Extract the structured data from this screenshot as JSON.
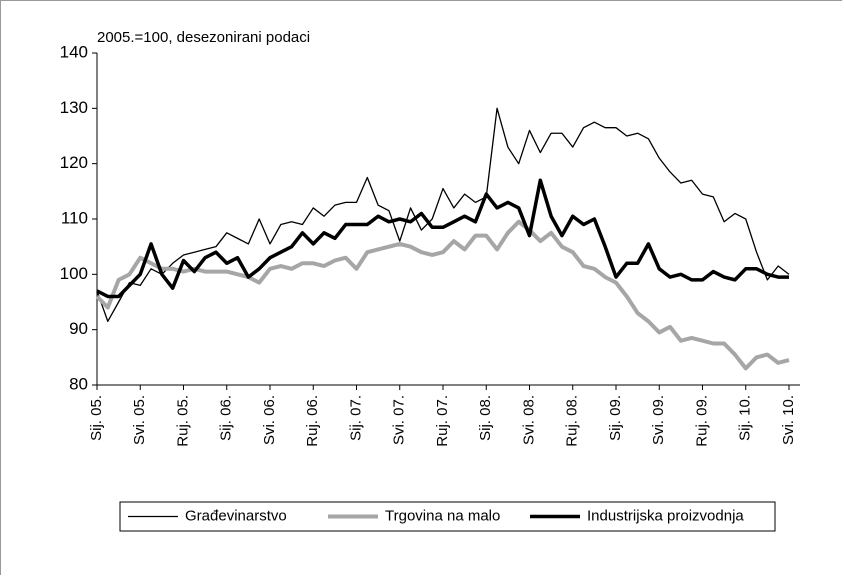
{
  "chart_data": {
    "type": "line",
    "subtitle": "2005.=100, desezonirani podaci",
    "categories": [
      "Sij. 05.",
      null,
      null,
      null,
      "Svi. 05.",
      null,
      null,
      null,
      "Ruj. 05.",
      null,
      null,
      null,
      "Sij. 06.",
      null,
      null,
      null,
      "Svi. 06.",
      null,
      null,
      null,
      "Ruj. 06.",
      null,
      null,
      null,
      "Sij. 07.",
      null,
      null,
      null,
      "Svi. 07.",
      null,
      null,
      null,
      "Ruj. 07.",
      null,
      null,
      null,
      "Sij. 08.",
      null,
      null,
      null,
      "Svi. 08.",
      null,
      null,
      null,
      "Ruj. 08.",
      null,
      null,
      null,
      "Sij. 09.",
      null,
      null,
      null,
      "Svi. 09.",
      null,
      null,
      null,
      "Ruj. 09.",
      null,
      null,
      null,
      "Sij. 10.",
      null,
      null,
      null,
      "Svi. 10."
    ],
    "series": [
      {
        "name": "Građevinarstvo",
        "color": "#000000",
        "width": 1.3,
        "values": [
          97,
          91.5,
          95,
          98.5,
          98,
          101,
          100,
          102,
          103.5,
          104,
          104.5,
          105,
          107.5,
          106.5,
          105.5,
          110,
          105.5,
          109,
          109.5,
          109,
          112,
          110.5,
          112.5,
          113,
          113,
          117.5,
          112.5,
          111.5,
          106,
          112,
          108,
          110,
          115.5,
          112,
          114.5,
          113,
          114,
          130,
          123,
          120,
          126,
          122,
          125.5,
          125.5,
          123,
          126.5,
          127.5,
          126.5,
          126.5,
          125,
          125.5,
          124.5,
          121,
          118.5,
          116.5,
          117,
          114.5,
          114,
          109.5,
          111,
          110,
          104,
          99,
          101.5,
          100
        ]
      },
      {
        "name": "Trgovina na malo",
        "color": "#a6a6a6",
        "width": 4,
        "values": [
          96,
          94,
          99,
          100,
          103,
          102,
          101,
          101,
          100.5,
          101,
          100.5,
          100.5,
          100.5,
          100,
          99.5,
          98.5,
          101,
          101.5,
          101,
          102,
          102,
          101.5,
          102.5,
          103,
          101,
          104,
          104.5,
          105,
          105.5,
          105,
          104,
          103.5,
          104,
          106,
          104.5,
          107,
          107,
          104.5,
          107.5,
          109.5,
          108,
          106,
          107.5,
          105,
          104,
          101.5,
          101,
          99.5,
          98.5,
          96,
          93,
          91.5,
          89.5,
          90.5,
          88,
          88.5,
          88,
          87.5,
          87.5,
          85.5,
          83,
          85,
          85.5,
          84,
          84.5
        ]
      },
      {
        "name": "Industrijska proizvodnja",
        "color": "#000000",
        "width": 3.5,
        "values": [
          97,
          96,
          96,
          98,
          100,
          105.5,
          100,
          97.5,
          102.5,
          100.5,
          103,
          104,
          102,
          103,
          99.5,
          101,
          103,
          104,
          105,
          107.5,
          105.5,
          107.5,
          106.5,
          109,
          109,
          109,
          110.5,
          109.5,
          110,
          109.5,
          111,
          108.5,
          108.5,
          109.5,
          110.5,
          109.5,
          114.5,
          112,
          113,
          112,
          107,
          117,
          110.5,
          107,
          110.5,
          109,
          110,
          105,
          99.5,
          102,
          102,
          105.5,
          101,
          99.5,
          100,
          99,
          99,
          100.5,
          99.5,
          99,
          101,
          101,
          100,
          99.5,
          99.5
        ]
      }
    ],
    "ylim": [
      80,
      140
    ],
    "yticks": [
      80,
      90,
      100,
      110,
      120,
      130,
      140
    ],
    "grid": false
  }
}
